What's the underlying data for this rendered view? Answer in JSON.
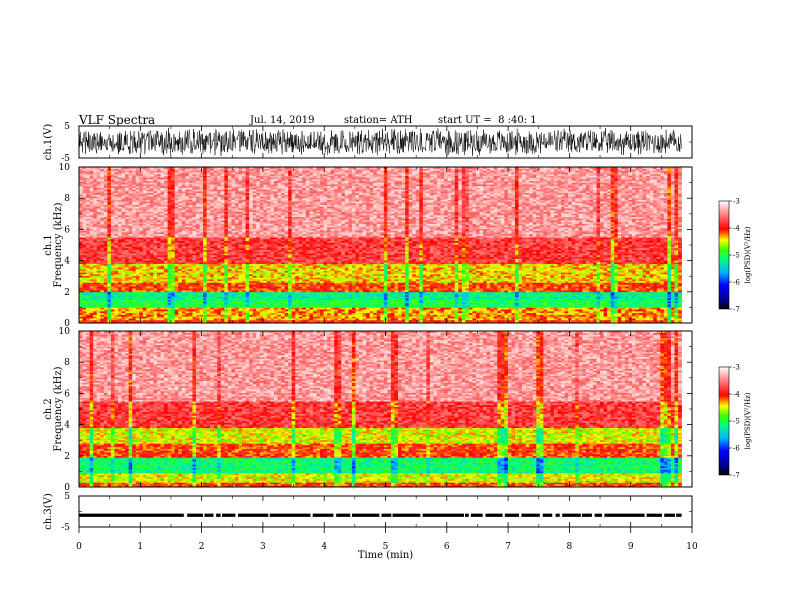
{
  "header": {
    "title": "VLF Spectra",
    "date": "Jul. 14, 2019",
    "station": "station= ATH",
    "start": "start UT =  8 :40: 1"
  },
  "chart_data": [
    {
      "type": "line",
      "panel": "ch1-waveform",
      "ylabel": "ch.1(V)",
      "yticks": [
        "5",
        "-5"
      ],
      "ylim": [
        -5,
        5
      ],
      "x_range_min": [
        0,
        9.83
      ],
      "description_values": {
        "amplitude_V": 4.5,
        "color": "#000000"
      }
    },
    {
      "type": "heatmap",
      "panel": "ch1-spectrogram",
      "ylabel_line1": "ch.1",
      "ylabel_line2": "Frequency (kHz)",
      "ylim": [
        0,
        10
      ],
      "yticks": [
        "0",
        "2",
        "4",
        "6",
        "8",
        "10"
      ],
      "x_range_min": [
        0,
        9.83
      ],
      "bands": [
        {
          "f_kHz": [
            0.0,
            0.2
          ],
          "log_psd": -4.0
        },
        {
          "f_kHz": [
            0.2,
            1.0
          ],
          "log_psd": -4.3
        },
        {
          "f_kHz": [
            1.0,
            1.5
          ],
          "log_psd": -5.0
        },
        {
          "f_kHz": [
            1.5,
            2.0
          ],
          "log_psd": -5.2
        },
        {
          "f_kHz": [
            2.0,
            2.6
          ],
          "log_psd": -4.1
        },
        {
          "f_kHz": [
            2.6,
            3.8
          ],
          "log_psd": -4.4
        },
        {
          "f_kHz": [
            3.8,
            5.5
          ],
          "log_psd": -3.8
        },
        {
          "f_kHz": [
            5.5,
            10.0
          ],
          "log_psd": -3.4
        }
      ],
      "colorbar": {
        "label": "log(PSD)(V²/Hz)",
        "range": [
          -7,
          -3
        ],
        "ticks": [
          "-3",
          "-4",
          "-5",
          "-6",
          "-7"
        ]
      }
    },
    {
      "type": "heatmap",
      "panel": "ch2-spectrogram",
      "ylabel_line1": "ch.2",
      "ylabel_line2": "Frequency (kHz)",
      "ylim": [
        0,
        10
      ],
      "yticks": [
        "0",
        "2",
        "4",
        "6",
        "8",
        "10"
      ],
      "x_range_min": [
        0,
        9.83
      ],
      "bands": [
        {
          "f_kHz": [
            0.0,
            0.3
          ],
          "log_psd": -4.1
        },
        {
          "f_kHz": [
            0.3,
            0.9
          ],
          "log_psd": -4.5
        },
        {
          "f_kHz": [
            0.9,
            1.9
          ],
          "log_psd": -5.1
        },
        {
          "f_kHz": [
            1.9,
            2.8
          ],
          "log_psd": -4.1
        },
        {
          "f_kHz": [
            2.8,
            3.8
          ],
          "log_psd": -4.5
        },
        {
          "f_kHz": [
            3.8,
            5.5
          ],
          "log_psd": -3.8
        },
        {
          "f_kHz": [
            5.5,
            10.0
          ],
          "log_psd": -3.4
        }
      ],
      "colorbar": {
        "label": "log(PSD)(V²/Hz)",
        "range": [
          -7,
          -3
        ],
        "ticks": [
          "-3",
          "-4",
          "-5",
          "-6",
          "-7"
        ]
      }
    },
    {
      "type": "line",
      "panel": "ch3-waveform",
      "ylabel": "ch.3(V)",
      "yticks": [
        "5",
        "-5"
      ],
      "ylim": [
        -5,
        5
      ],
      "x_range_min": [
        0,
        9.83
      ],
      "description_values": {
        "level_V": -1.2,
        "color": "#000000"
      }
    }
  ],
  "xaxis": {
    "label": "Time (min)",
    "ticks": [
      "0",
      "1",
      "2",
      "3",
      "4",
      "5",
      "6",
      "7",
      "8",
      "9",
      "10"
    ],
    "range": [
      0,
      10
    ]
  },
  "colors": {
    "frame": "#000000",
    "background": "#ffffff",
    "scale": [
      "#000000",
      "#0000ff",
      "#00a0ff",
      "#00ff00",
      "#ffff00",
      "#ff0000",
      "#ffffff"
    ]
  }
}
